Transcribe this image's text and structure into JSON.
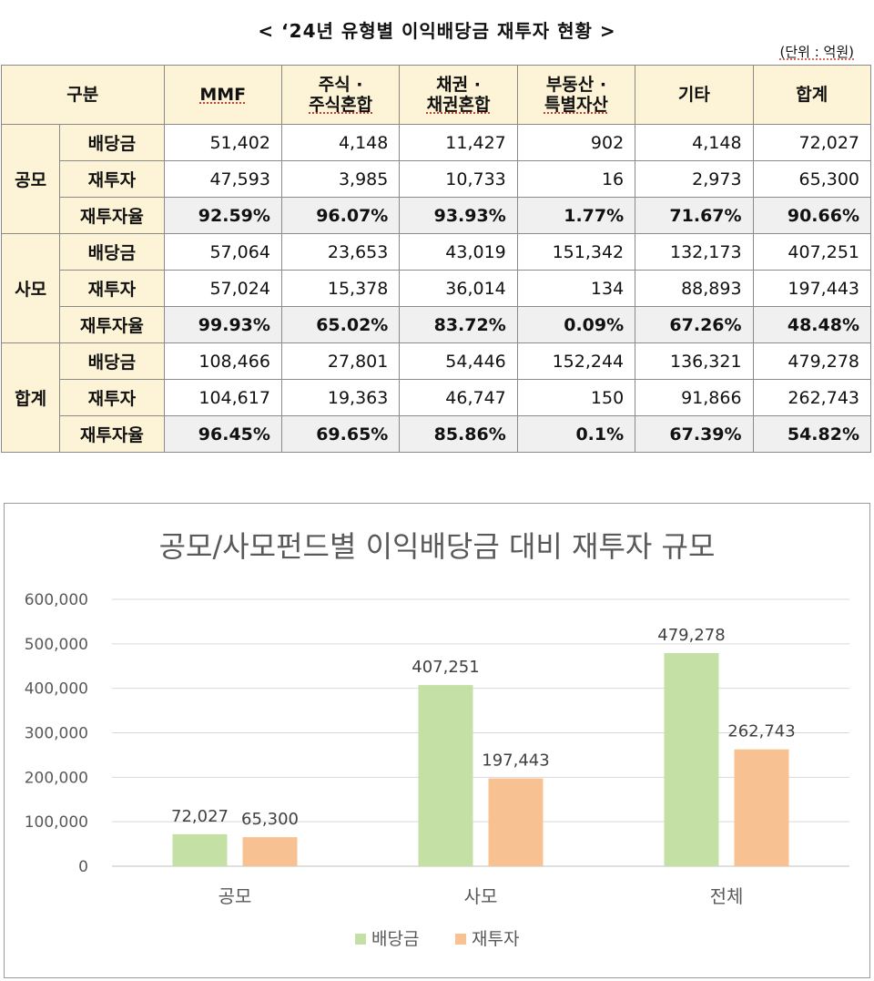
{
  "header": {
    "title": "< ‘24년 유형별 이익배당금 재투자 현황 >",
    "unit": "(단위 : 억원)"
  },
  "table": {
    "corner": "구분",
    "columns": [
      {
        "line1": "MMF",
        "line2": ""
      },
      {
        "line1": "주식 ·",
        "line2": "주식혼합"
      },
      {
        "line1": "채권 ·",
        "line2": "채권혼합"
      },
      {
        "line1": "부동산 ·",
        "line2": "특별자산"
      },
      {
        "line1": "기타",
        "line2": ""
      },
      {
        "line1": "합계",
        "line2": ""
      }
    ],
    "groups": [
      {
        "name": "공모",
        "rows": [
          {
            "label": "배당금",
            "values": [
              "51,402",
              "4,148",
              "11,427",
              "902",
              "4,148",
              "72,027"
            ]
          },
          {
            "label": "재투자",
            "values": [
              "47,593",
              "3,985",
              "10,733",
              "16",
              "2,973",
              "65,300"
            ]
          },
          {
            "label": "재투자율",
            "values": [
              "92.59%",
              "96.07%",
              "93.93%",
              "1.77%",
              "71.67%",
              "90.66%"
            ]
          }
        ]
      },
      {
        "name": "사모",
        "rows": [
          {
            "label": "배당금",
            "values": [
              "57,064",
              "23,653",
              "43,019",
              "151,342",
              "132,173",
              "407,251"
            ]
          },
          {
            "label": "재투자",
            "values": [
              "57,024",
              "15,378",
              "36,014",
              "134",
              "88,893",
              "197,443"
            ]
          },
          {
            "label": "재투자율",
            "values": [
              "99.93%",
              "65.02%",
              "83.72%",
              "0.09%",
              "67.26%",
              "48.48%"
            ]
          }
        ]
      },
      {
        "name": "합계",
        "rows": [
          {
            "label": "배당금",
            "values": [
              "108,466",
              "27,801",
              "54,446",
              "152,244",
              "136,321",
              "479,278"
            ]
          },
          {
            "label": "재투자",
            "values": [
              "104,617",
              "19,363",
              "46,747",
              "150",
              "91,866",
              "262,743"
            ]
          },
          {
            "label": "재투자율",
            "values": [
              "96.45%",
              "69.65%",
              "85.86%",
              "0.1%",
              "67.39%",
              "54.82%"
            ]
          }
        ]
      }
    ]
  },
  "chart_data": {
    "type": "bar",
    "title": "공모/사모펀드별 이익배당금 대비 재투자 규모",
    "categories": [
      "공모",
      "사모",
      "전체"
    ],
    "series": [
      {
        "name": "배당금",
        "values": [
          72027,
          407251,
          479278
        ],
        "color": "#c5e0a5"
      },
      {
        "name": "재투자",
        "values": [
          65300,
          197443,
          262743
        ],
        "color": "#f8c191"
      }
    ],
    "yticks": [
      0,
      100000,
      200000,
      300000,
      400000,
      500000,
      600000
    ],
    "ylim": [
      0,
      600000
    ],
    "grid": true,
    "legend": "bottom",
    "data_labels": true
  }
}
